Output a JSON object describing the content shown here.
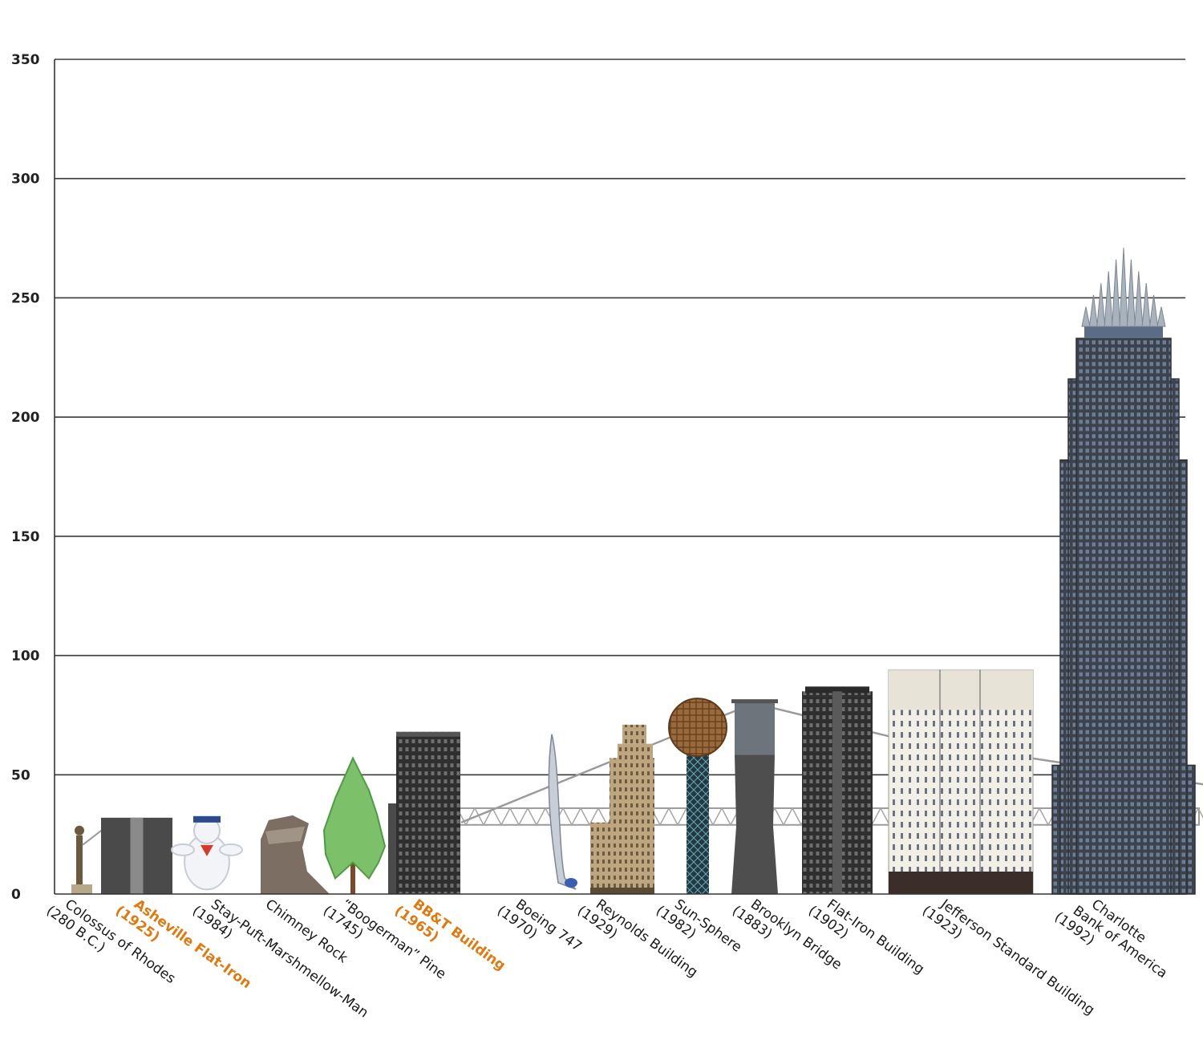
{
  "chart_data": {
    "type": "bar",
    "title": "",
    "xlabel": "",
    "ylabel": "",
    "ylim": [
      0,
      350
    ],
    "yticks": [
      0,
      50,
      100,
      150,
      200,
      250,
      300,
      350
    ],
    "grid": true,
    "legend": "none",
    "categories": [
      "Colossus of Rhodes (280 B.C.)",
      "Asheville Flat-Iron (1925)",
      "Stay-Puft-Marshmellow-Man (1984)",
      "Chimney Rock",
      "“Boogerman” Pine (1745)",
      "BB&T Building (1965)",
      "Boeing 747 (1970)",
      "Reynolds Building (1929)",
      "Sun-Sphere (1982)",
      "Brooklyn Bridge (1883)",
      "Flat-Iron Building (1902)",
      "Jefferson Standard Building (1923)",
      "Charlotte Bank of America (1992)"
    ],
    "values": [
      30,
      32,
      32,
      33,
      57,
      68,
      67,
      71,
      82,
      81,
      87,
      94,
      271
    ],
    "highlighted": [
      "Asheville Flat-Iron (1925)",
      "BB&T Building (1965)"
    ],
    "series": [
      {
        "values": [
          30,
          32,
          32,
          33,
          57,
          68,
          67,
          71,
          82,
          81,
          87,
          94,
          271
        ]
      }
    ],
    "label_lines": [
      [
        "Colossus of Rhodes",
        "(280 B.C.)"
      ],
      [
        "Asheville Flat-Iron",
        "(1925)"
      ],
      [
        "Stay-Puft-Marshmellow-Man",
        "(1984)"
      ],
      [
        "Chimney Rock"
      ],
      [
        "“Boogerman” Pine",
        "(1745)"
      ],
      [
        "BB&T Building",
        "(1965)"
      ],
      [
        "Boeing 747",
        "(1970)"
      ],
      [
        "Reynolds Building",
        "(1929)"
      ],
      [
        "Sun-Sphere",
        "(1982)"
      ],
      [
        "Brooklyn Bridge",
        "(1883)"
      ],
      [
        "Flat-Iron Building",
        "(1902)"
      ],
      [
        "Jefferson Standard Building",
        "(1923)"
      ],
      [
        "Charlotte",
        "Bank of America",
        "(1992)"
      ]
    ],
    "colors": {
      "gridline": "#3a3a3a",
      "highlight_label": "#e07a10",
      "normal_label": "#1a1a1a",
      "statue": "#6b5a3e",
      "flatiron_asheville": "#4a4a4a",
      "marshmallow": "#f2f4f8",
      "rock": "#7c6e62",
      "pine_trunk": "#7b4a2a",
      "pine_foliage": "#7cc06a",
      "bbt": "#3f3f3f",
      "boeing": "#c9ced6",
      "reynolds": "#b9a07a",
      "sunsphere_ball": "#9a6a3a",
      "sunsphere_tower": "#2d5560",
      "brooklyn": "#4e4e4e",
      "brooklyn_upper": "#6d747c",
      "flatiron_nyc": "#3a3a3a",
      "jefferson": "#f1efe6",
      "jefferson_base": "#3b2e2a",
      "bofa": "#4a4f58",
      "bofa_crown": "#a9b3bd"
    }
  }
}
